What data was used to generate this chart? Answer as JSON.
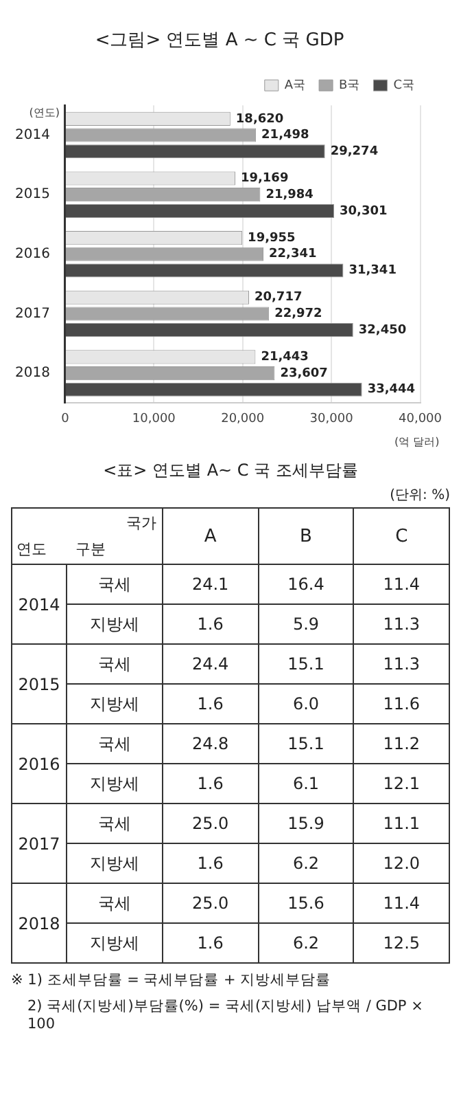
{
  "chart_data": [
    {
      "type": "bar",
      "orientation": "horizontal",
      "title": "<그림> 연도별 A ~ C 국 GDP",
      "xlabel": "(억 달러)",
      "ylabel": "(연도)",
      "categories": [
        "2014",
        "2015",
        "2016",
        "2017",
        "2018"
      ],
      "series": [
        {
          "name": "A국",
          "color": "#e6e6e6",
          "values": [
            18620,
            19169,
            19955,
            20717,
            21443
          ],
          "value_labels": [
            "18,620",
            "19,169",
            "19,955",
            "20,717",
            "21,443"
          ]
        },
        {
          "name": "B국",
          "color": "#a6a6a6",
          "values": [
            21498,
            21984,
            22341,
            22972,
            23607
          ],
          "value_labels": [
            "21,498",
            "21,984",
            "22,341",
            "22,972",
            "23,607"
          ]
        },
        {
          "name": "C국",
          "color": "#4a4a4a",
          "values": [
            29274,
            30301,
            31341,
            32450,
            33444
          ],
          "value_labels": [
            "29,274",
            "30,301",
            "31,341",
            "32,450",
            "33,444"
          ]
        }
      ],
      "xlim": [
        0,
        40000
      ],
      "xticks": [
        {
          "value": 0,
          "label": "0"
        },
        {
          "value": 10000,
          "label": "10,000"
        },
        {
          "value": 20000,
          "label": "20,000"
        },
        {
          "value": 30000,
          "label": "30,000"
        },
        {
          "value": 40000,
          "label": "40,000"
        }
      ],
      "grid": "x",
      "legend": "top right"
    },
    {
      "type": "heatmap",
      "title": "<표> 연도별 A~ C 국 조세부담률",
      "xlabel": "국가",
      "ylabel": "연도",
      "categories": [
        "A",
        "B",
        "C"
      ],
      "y_categories": [
        "국세",
        "지방세",
        "국세",
        "지방세",
        "국세",
        "지방세",
        "국세",
        "지방세",
        "국세",
        "지방세"
      ],
      "y2_categories": [
        "2014",
        null,
        "2015",
        null,
        "2016",
        null,
        "2017",
        null,
        "2018",
        null
      ],
      "cells": [
        [
          24.1,
          16.4,
          11.4
        ],
        [
          1.6,
          5.9,
          11.3
        ],
        [
          24.4,
          15.1,
          11.3
        ],
        [
          1.6,
          6.0,
          11.6
        ],
        [
          24.8,
          15.1,
          11.2
        ],
        [
          1.6,
          6.1,
          12.1
        ],
        [
          25.0,
          15.9,
          11.1
        ],
        [
          1.6,
          6.2,
          12.0
        ],
        [
          25.0,
          15.6,
          11.4
        ],
        [
          1.6,
          6.2,
          12.5
        ]
      ],
      "cell_labels": [
        [
          "24.1",
          "16.4",
          "11.4"
        ],
        [
          "1.6",
          "5.9",
          "11.3"
        ],
        [
          "24.4",
          "15.1",
          "11.3"
        ],
        [
          "1.6",
          "6.0",
          "11.6"
        ],
        [
          "24.8",
          "15.1",
          "11.2"
        ],
        [
          "1.6",
          "6.1",
          "12.1"
        ],
        [
          "25.0",
          "15.9",
          "11.1"
        ],
        [
          "1.6",
          "6.2",
          "12.0"
        ],
        [
          "25.0",
          "15.6",
          "11.4"
        ],
        [
          "1.6",
          "6.2",
          "12.5"
        ]
      ],
      "annotations": [
        "구분",
        "(단위: %)",
        "※ 1) 조세부담률 = 국세부담률 + 지방세부담률",
        "2) 국세(지방세)부담률(%) = 국세(지방세) 납부액 / GDP × 100"
      ]
    }
  ]
}
